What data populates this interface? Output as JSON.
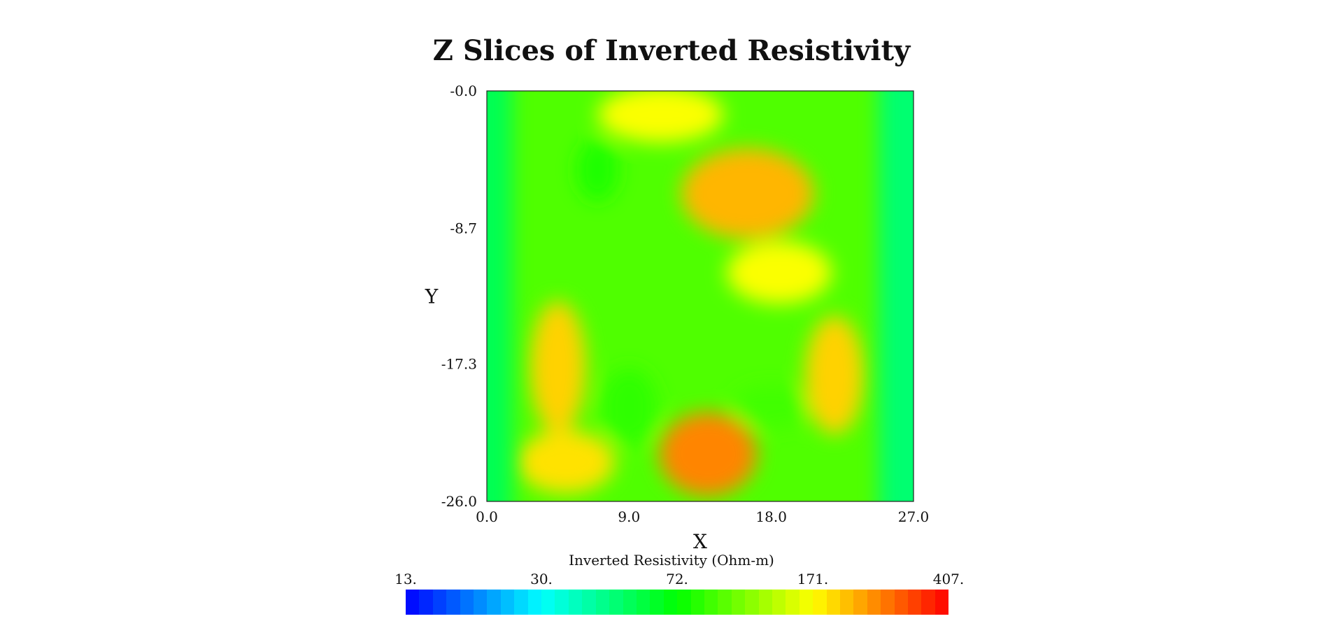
{
  "chart_data": {
    "type": "heatmap",
    "title": "Z Slices of Inverted Resistivity",
    "xlabel": "X",
    "ylabel": "Y",
    "xlim": [
      0.0,
      27.0
    ],
    "ylim": [
      -26.0,
      -0.0
    ],
    "x_ticks": [
      "0.0",
      "9.0",
      "18.0",
      "27.0"
    ],
    "y_ticks": [
      "-0.0",
      "-8.7",
      "-17.3",
      "-26.0"
    ],
    "colorbar": {
      "label": "Inverted Resistivity (Ohm-m)",
      "ticks": [
        "13.",
        "30.",
        "72.",
        "171.",
        "407."
      ],
      "colors": [
        "#0000ff",
        "#00ffff",
        "#00ff00",
        "#ffff00",
        "#ff0000"
      ]
    },
    "field_description": {
      "background_value": 95,
      "edge_bands": [
        {
          "x_range": [
            0.0,
            1.6
          ],
          "value": 55
        },
        {
          "x_range": [
            24.8,
            27.0
          ],
          "value": 50
        }
      ],
      "anomalies": [
        {
          "x": 14.0,
          "y": -23.0,
          "value": 260
        },
        {
          "x": 16.5,
          "y": -6.5,
          "value": 220
        },
        {
          "x": 4.5,
          "y": -17.5,
          "value": 200
        },
        {
          "x": 22.0,
          "y": -18.0,
          "value": 200
        },
        {
          "x": 5.0,
          "y": -23.5,
          "value": 190
        },
        {
          "x": 11.0,
          "y": -1.5,
          "value": 170
        },
        {
          "x": 18.5,
          "y": -11.5,
          "value": 170
        },
        {
          "x": 7.0,
          "y": -5.0,
          "value": 80
        },
        {
          "x": 9.0,
          "y": -20.0,
          "value": 85
        },
        {
          "x": 18.0,
          "y": -20.0,
          "value": 90
        }
      ]
    }
  }
}
